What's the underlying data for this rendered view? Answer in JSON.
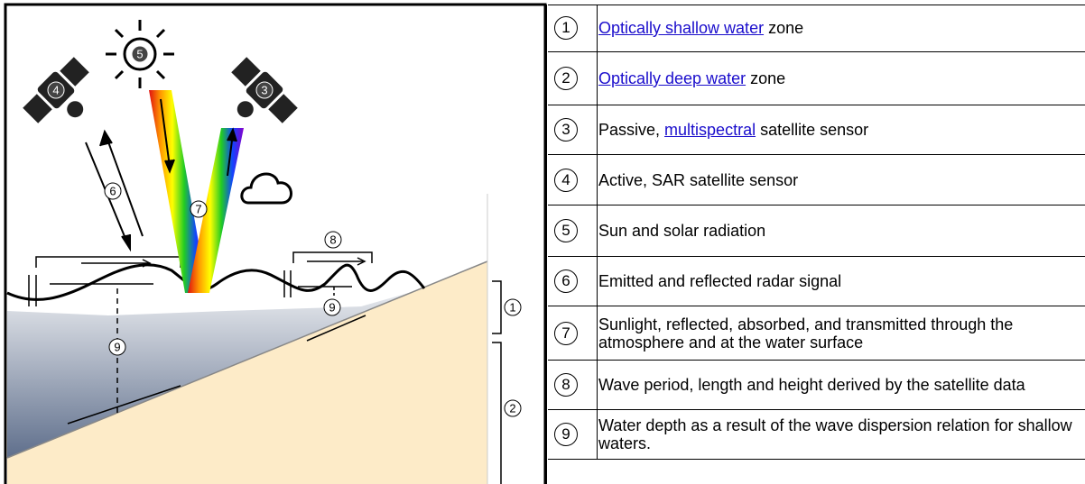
{
  "diagram": {
    "markers": [
      "5",
      "4",
      "3",
      "6",
      "7",
      "8",
      "9",
      "9",
      "1",
      "2"
    ]
  },
  "legend": [
    {
      "number": "1",
      "parts": [
        {
          "text": "Optically shallow water",
          "link": true
        },
        {
          "text": "zone"
        }
      ]
    },
    {
      "number": "2",
      "parts": [
        {
          "text": "Optically deep water",
          "link": true
        },
        {
          "text": "zone"
        }
      ]
    },
    {
      "number": "3",
      "parts": [
        {
          "text": "Passive,"
        },
        {
          "text": "multispectral",
          "link": true
        },
        {
          "text": "satellite sensor"
        }
      ]
    },
    {
      "number": "4",
      "parts": [
        {
          "text": "Active, SAR satellite sensor"
        }
      ]
    },
    {
      "number": "5",
      "parts": [
        {
          "text": "Sun and solar radiation"
        }
      ]
    },
    {
      "number": "6",
      "parts": [
        {
          "text": "Emitted and reflected radar signal"
        }
      ]
    },
    {
      "number": "7",
      "parts": [
        {
          "text": "Sunlight, reflected, absorbed, and transmitted through the atmosphere and at the water surface"
        }
      ]
    },
    {
      "number": "8",
      "parts": [
        {
          "text": "Wave period, length and height derived by the satellite data"
        }
      ]
    },
    {
      "number": "9",
      "parts": [
        {
          "text": "Water depth as a result of the wave dispersion relation for shallow waters."
        }
      ]
    }
  ]
}
